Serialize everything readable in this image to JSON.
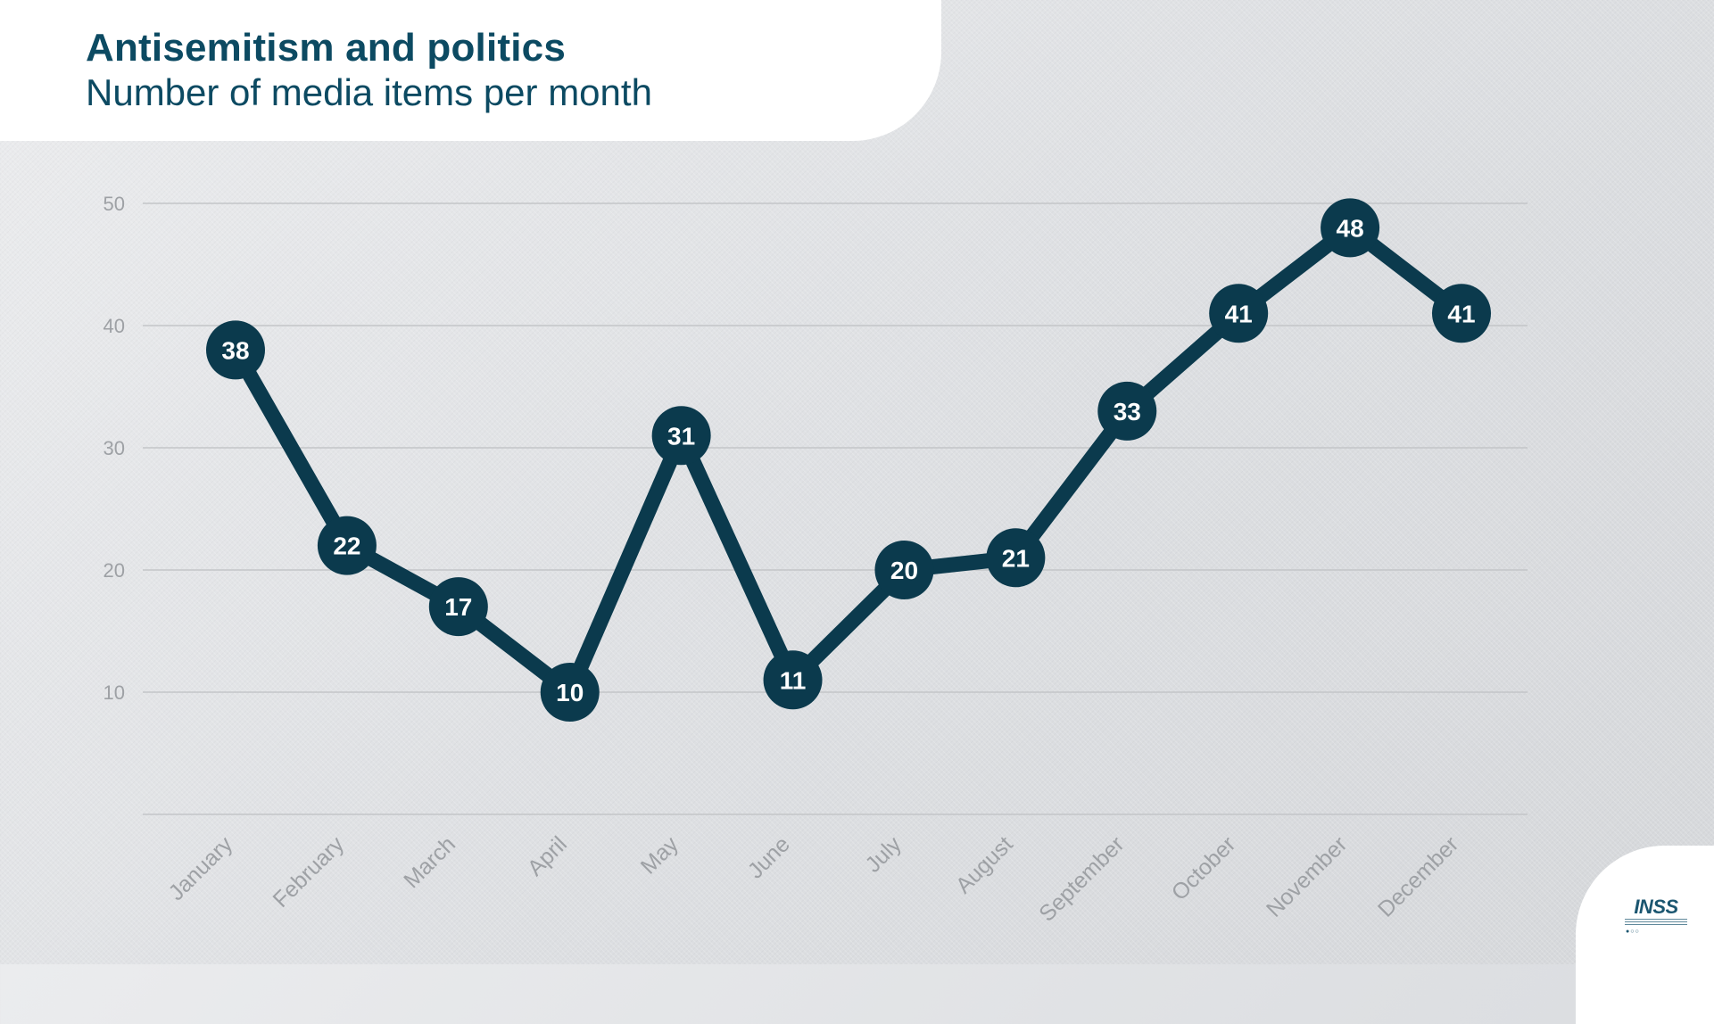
{
  "header": {
    "title": "Antisemitism and politics",
    "subtitle": "Number of media items per month"
  },
  "logo": {
    "text": "INSS",
    "icon": "inss-logo-icon"
  },
  "colors": {
    "line": "#0b3a4d",
    "marker": "#0b3a4d",
    "marker_text": "#ffffff",
    "grid": "#c3c5c8",
    "tick_text": "#9ea1a5",
    "title": "#0c4a62"
  },
  "chart_data": {
    "type": "line",
    "title": "Antisemitism and politics",
    "subtitle": "Number of media items per month",
    "xlabel": "",
    "ylabel": "",
    "categories": [
      "January",
      "February",
      "March",
      "April",
      "May",
      "June",
      "July",
      "August",
      "September",
      "October",
      "November",
      "December"
    ],
    "series": [
      {
        "values": [
          38,
          22,
          17,
          10,
          31,
          11,
          20,
          21,
          33,
          41,
          48,
          41
        ]
      }
    ],
    "ylim": [
      0,
      50
    ],
    "yticks": [
      10,
      20,
      30,
      40,
      50
    ],
    "grid": true,
    "legend": "none",
    "data_labels": true
  }
}
